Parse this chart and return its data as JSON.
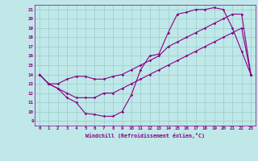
{
  "xlabel": "Windchill (Refroidissement éolien,°C)",
  "bg_color": "#c0e8e8",
  "line_color": "#880088",
  "grid_color": "#99cccc",
  "xlim": [
    -0.5,
    23.5
  ],
  "ylim": [
    8.5,
    21.5
  ],
  "xticks": [
    0,
    1,
    2,
    3,
    4,
    5,
    6,
    7,
    8,
    9,
    10,
    11,
    12,
    13,
    14,
    15,
    16,
    17,
    18,
    19,
    20,
    21,
    22,
    23
  ],
  "yticks": [
    9,
    10,
    11,
    12,
    13,
    14,
    15,
    16,
    17,
    18,
    19,
    20,
    21
  ],
  "line1_x": [
    0,
    1,
    2,
    3,
    4,
    5,
    6,
    7,
    8,
    9,
    10,
    11,
    12,
    13,
    14,
    15,
    16,
    17,
    18,
    19,
    20,
    21,
    22,
    23
  ],
  "line1_y": [
    14,
    13,
    12.5,
    11.5,
    11,
    9.8,
    9.7,
    9.5,
    9.5,
    10,
    11.8,
    14.5,
    16,
    16.2,
    18.5,
    20.5,
    20.7,
    21.0,
    21.0,
    21.2,
    21.0,
    19.0,
    16.5,
    14.0
  ],
  "line2_x": [
    0,
    1,
    2,
    3,
    4,
    5,
    6,
    7,
    8,
    9,
    10,
    11,
    12,
    13,
    14,
    15,
    16,
    17,
    18,
    19,
    20,
    21,
    22,
    23
  ],
  "line2_y": [
    14,
    13.0,
    13.0,
    13.5,
    13.8,
    13.8,
    13.5,
    13.5,
    13.8,
    14.0,
    14.5,
    15.0,
    15.5,
    16.0,
    17.0,
    17.5,
    18.0,
    18.5,
    19.0,
    19.5,
    20.0,
    20.5,
    20.5,
    14.0
  ],
  "line3_x": [
    0,
    1,
    2,
    3,
    4,
    5,
    6,
    7,
    8,
    9,
    10,
    11,
    12,
    13,
    14,
    15,
    16,
    17,
    18,
    19,
    20,
    21,
    22,
    23
  ],
  "line3_y": [
    14,
    13.0,
    12.5,
    12.0,
    11.5,
    11.5,
    11.5,
    12.0,
    12.0,
    12.5,
    13.0,
    13.5,
    14.0,
    14.5,
    15.0,
    15.5,
    16.0,
    16.5,
    17.0,
    17.5,
    18.0,
    18.5,
    19.0,
    14.0
  ]
}
